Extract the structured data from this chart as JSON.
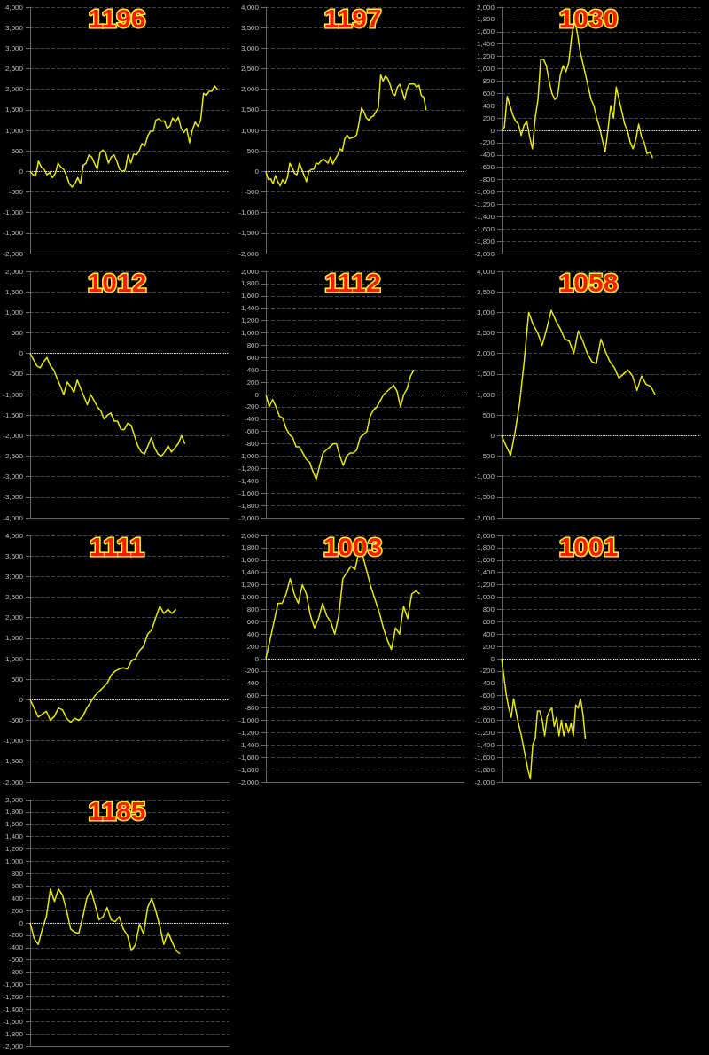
{
  "chart_data": [
    {
      "type": "line",
      "title": "1196",
      "ref_lines": [
        {
          "axis": "y",
          "value": 0,
          "color": "#dddddd",
          "line_style": "dotted"
        }
      ],
      "ylim": [
        -2000,
        4000
      ],
      "yticks": [
        {
          "value": -2000,
          "label": "-2,000"
        },
        {
          "value": -1500,
          "label": "-1,500"
        },
        {
          "value": -1000,
          "label": "-1,000"
        },
        -500,
        0,
        500,
        {
          "value": 1000,
          "label": "1,000"
        },
        {
          "value": 1500,
          "label": "1,500"
        },
        {
          "value": 2000,
          "label": "2,000"
        },
        {
          "value": 2500,
          "label": "2,500"
        },
        {
          "value": 3000,
          "label": "3,000"
        },
        {
          "value": 3500,
          "label": "3,500"
        },
        {
          "value": 4000,
          "label": "4,000"
        }
      ],
      "grid": "y",
      "tick_labels": "y",
      "categories": [
        null,
        null,
        null,
        null,
        null,
        null,
        null,
        null,
        null,
        null,
        null,
        null,
        null,
        null,
        null,
        null,
        null,
        null,
        null,
        null,
        null,
        null,
        null,
        null,
        null,
        null,
        null,
        null,
        null,
        null,
        null,
        null,
        null,
        null,
        null,
        null,
        null,
        null,
        null,
        null,
        null,
        null,
        null,
        null,
        null,
        null,
        null,
        null,
        null,
        null,
        null,
        null,
        null,
        null,
        null,
        null,
        null,
        null,
        null,
        null,
        null,
        null,
        null,
        null,
        null,
        null,
        null,
        null,
        null,
        null,
        null,
        null
      ],
      "series": [
        {
          "color": "#e8e800",
          "values": [
            0,
            -80,
            -100,
            250,
            100,
            50,
            -80,
            -30,
            -150,
            -50,
            200,
            100,
            50,
            -100,
            -300,
            -380,
            -300,
            -150,
            -300,
            150,
            200,
            400,
            350,
            200,
            50,
            450,
            520,
            450,
            200,
            350,
            400,
            250,
            50,
            0,
            30,
            400,
            200,
            420,
            400,
            500,
            680,
            620,
            850,
            980,
            980,
            1250,
            1280,
            1220,
            1230,
            1050,
            1100,
            1300,
            1200,
            1320,
            1050,
            950,
            1050,
            700,
            1000,
            1200,
            1100,
            1250,
            1900,
            1850,
            1950,
            1950,
            2080,
            2000,
            null,
            null,
            null,
            null
          ]
        }
      ]
    },
    {
      "type": "line",
      "title": "1197",
      "ref_lines": [
        {
          "axis": "y",
          "value": 0,
          "color": "#dddddd",
          "line_style": "dotted"
        }
      ],
      "ylim": [
        -2000,
        4000
      ],
      "yticks": [
        {
          "value": -2000,
          "label": "-2,000"
        },
        {
          "value": -1500,
          "label": "-1,500"
        },
        {
          "value": -1000,
          "label": "-1,000"
        },
        -500,
        0,
        500,
        {
          "value": 1000,
          "label": "1,000"
        },
        {
          "value": 1500,
          "label": "1,500"
        },
        {
          "value": 2000,
          "label": "2,000"
        },
        {
          "value": 2500,
          "label": "2,500"
        },
        {
          "value": 3000,
          "label": "3,000"
        },
        {
          "value": 3500,
          "label": "3,500"
        },
        {
          "value": 4000,
          "label": "4,000"
        }
      ],
      "grid": "y",
      "tick_labels": "y",
      "categories": [
        null,
        null,
        null,
        null,
        null,
        null,
        null,
        null,
        null,
        null,
        null,
        null,
        null,
        null,
        null,
        null,
        null,
        null,
        null,
        null,
        null,
        null,
        null,
        null,
        null,
        null,
        null,
        null,
        null,
        null,
        null,
        null,
        null,
        null,
        null,
        null,
        null,
        null,
        null,
        null,
        null,
        null,
        null,
        null,
        null,
        null,
        null,
        null,
        null,
        null,
        null,
        null,
        null,
        null,
        null,
        null,
        null,
        null,
        null,
        null,
        null,
        null,
        null,
        null,
        null,
        null,
        null,
        null,
        null,
        null,
        null,
        null,
        null,
        null,
        null,
        null,
        null,
        null,
        null,
        null,
        null,
        null,
        null,
        null
      ],
      "series": [
        {
          "color": "#e8e800",
          "values": [
            0,
            -200,
            -180,
            -300,
            -100,
            -250,
            -350,
            -200,
            -300,
            -150,
            200,
            100,
            -50,
            -80,
            200,
            50,
            -100,
            -250,
            0,
            50,
            50,
            200,
            180,
            250,
            300,
            250,
            200,
            350,
            180,
            300,
            400,
            550,
            500,
            800,
            880,
            800,
            820,
            830,
            900,
            1200,
            1550,
            1450,
            1300,
            1250,
            1320,
            1350,
            1450,
            1550,
            2350,
            2200,
            2320,
            2250,
            2100,
            1900,
            1850,
            2050,
            2120,
            1950,
            1750,
            2000,
            2130,
            2130,
            2130,
            2050,
            2100,
            1850,
            1800,
            1500,
            null,
            null,
            null,
            null,
            null,
            null,
            null,
            null,
            null,
            null,
            null,
            null,
            null,
            null,
            null,
            null
          ]
        }
      ]
    },
    {
      "type": "line",
      "title": "1030",
      "ref_lines": [
        {
          "axis": "y",
          "value": 0,
          "color": "#dddddd",
          "line_style": "dotted"
        }
      ],
      "ylim": [
        -2000,
        2000
      ],
      "yticks": [
        {
          "value": -2000,
          "label": "-2,000"
        },
        {
          "value": -1800,
          "label": "-1,800"
        },
        {
          "value": -1600,
          "label": "-1,600"
        },
        {
          "value": -1400,
          "label": "-1,400"
        },
        {
          "value": -1200,
          "label": "-1,200"
        },
        {
          "value": -1000,
          "label": "-1,000"
        },
        -800,
        -600,
        -400,
        -200,
        0,
        200,
        400,
        600,
        800,
        {
          "value": 1000,
          "label": "1,000"
        },
        {
          "value": 1200,
          "label": "1,200"
        },
        {
          "value": 1400,
          "label": "1,400"
        },
        {
          "value": 1600,
          "label": "1,600"
        },
        {
          "value": 1800,
          "label": "1,800"
        },
        {
          "value": 2000,
          "label": "2,000"
        }
      ],
      "grid": "y",
      "tick_labels": "y",
      "categories": [
        null,
        null,
        null,
        null,
        null,
        null,
        null,
        null,
        null,
        null,
        null,
        null,
        null,
        null,
        null,
        null,
        null,
        null,
        null,
        null,
        null,
        null,
        null,
        null,
        null,
        null,
        null,
        null,
        null,
        null,
        null,
        null,
        null,
        null,
        null,
        null,
        null,
        null,
        null,
        null,
        null,
        null,
        null,
        null,
        null,
        null,
        null,
        null,
        null,
        null,
        null,
        null,
        null,
        null,
        null,
        null,
        null,
        null,
        null,
        null,
        null,
        null,
        null,
        null,
        null,
        null,
        null,
        null,
        null,
        null,
        null,
        null
      ],
      "series": [
        {
          "color": "#e8e800",
          "values": [
            0,
            50,
            550,
            400,
            250,
            150,
            100,
            -80,
            80,
            150,
            -100,
            -300,
            200,
            500,
            1150,
            1150,
            1050,
            800,
            600,
            500,
            550,
            900,
            1050,
            950,
            1100,
            1500,
            1800,
            1600,
            1300,
            1100,
            900,
            700,
            500,
            400,
            200,
            50,
            -150,
            -350,
            0,
            400,
            200,
            700,
            500,
            300,
            100,
            0,
            -200,
            -300,
            -150,
            100,
            -100,
            -200,
            -380,
            -350,
            -450,
            null,
            null,
            null,
            null,
            null,
            null,
            null,
            null,
            null,
            null,
            null,
            null,
            null,
            null,
            null,
            null,
            null
          ]
        }
      ]
    },
    {
      "type": "line",
      "title": "1012",
      "ref_lines": [
        {
          "axis": "y",
          "value": 0,
          "color": "#dddddd",
          "line_style": "dotted"
        }
      ],
      "ylim": [
        -4000,
        2000
      ],
      "yticks": [
        {
          "value": -4000,
          "label": "-4,000"
        },
        {
          "value": -3500,
          "label": "-3,500"
        },
        {
          "value": -3000,
          "label": "-3,000"
        },
        {
          "value": -2500,
          "label": "-2,500"
        },
        {
          "value": -2000,
          "label": "-2,000"
        },
        {
          "value": -1500,
          "label": "-1,500"
        },
        {
          "value": -1000,
          "label": "-1,000"
        },
        -500,
        0,
        500,
        {
          "value": 1000,
          "label": "1,000"
        },
        {
          "value": 1500,
          "label": "1,500"
        },
        {
          "value": 2000,
          "label": "2,000"
        }
      ],
      "grid": "y",
      "tick_labels": "y",
      "categories": [
        null,
        null,
        null,
        null,
        null,
        null,
        null,
        null,
        null,
        null,
        null,
        null,
        null,
        null,
        null,
        null,
        null,
        null,
        null,
        null,
        null,
        null,
        null,
        null,
        null,
        null,
        null,
        null,
        null,
        null,
        null,
        null,
        null,
        null,
        null,
        null,
        null,
        null,
        null,
        null,
        null,
        null,
        null,
        null,
        null,
        null,
        null,
        null,
        null,
        null,
        null,
        null,
        null,
        null,
        null,
        null,
        null,
        null,
        null,
        null
      ],
      "series": [
        {
          "color": "#e8e800",
          "values": [
            0,
            -150,
            -300,
            -350,
            -200,
            -100,
            -300,
            -400,
            -600,
            -800,
            -1000,
            -700,
            -800,
            -950,
            -650,
            -850,
            -1050,
            -1250,
            -1000,
            -1150,
            -1300,
            -1400,
            -1600,
            -1500,
            -1450,
            -1650,
            -1650,
            -1850,
            -1850,
            -1700,
            -1750,
            -2000,
            -2250,
            -2400,
            -2450,
            -2250,
            -2050,
            -2300,
            -2450,
            -2500,
            -2400,
            -2250,
            -2400,
            -2300,
            -2200,
            -2000,
            -2200,
            null,
            null,
            null,
            null,
            null,
            null,
            null,
            null,
            null,
            null,
            null,
            null,
            null
          ]
        }
      ]
    },
    {
      "type": "line",
      "title": "1112",
      "ref_lines": [
        {
          "axis": "y",
          "value": 0,
          "color": "#dddddd",
          "line_style": "dotted"
        }
      ],
      "ylim": [
        -2000,
        2000
      ],
      "yticks": [
        {
          "value": -2000,
          "label": "-2,000"
        },
        {
          "value": -1800,
          "label": "-1,800"
        },
        {
          "value": -1600,
          "label": "-1,600"
        },
        {
          "value": -1400,
          "label": "-1,400"
        },
        {
          "value": -1200,
          "label": "-1,200"
        },
        {
          "value": -1000,
          "label": "-1,000"
        },
        -800,
        -600,
        -400,
        -200,
        0,
        200,
        400,
        600,
        800,
        {
          "value": 1000,
          "label": "1,000"
        },
        {
          "value": 1200,
          "label": "1,200"
        },
        {
          "value": 1400,
          "label": "1,400"
        },
        {
          "value": 1600,
          "label": "1,600"
        },
        {
          "value": 1800,
          "label": "1,800"
        },
        {
          "value": 2000,
          "label": "2,000"
        }
      ],
      "grid": "y",
      "tick_labels": "y",
      "categories": [
        null,
        null,
        null,
        null,
        null,
        null,
        null,
        null,
        null,
        null,
        null,
        null,
        null,
        null,
        null,
        null,
        null,
        null,
        null,
        null,
        null,
        null,
        null,
        null,
        null,
        null,
        null,
        null,
        null,
        null,
        null,
        null,
        null,
        null,
        null,
        null,
        null,
        null,
        null,
        null,
        null,
        null,
        null,
        null,
        null,
        null,
        null,
        null,
        null,
        null,
        null,
        null,
        null,
        null,
        null,
        null,
        null,
        null,
        null,
        null
      ],
      "series": [
        {
          "color": "#e8e800",
          "values": [
            0,
            -200,
            -80,
            -200,
            -350,
            -380,
            -550,
            -650,
            -700,
            -850,
            -850,
            -950,
            -1050,
            -1100,
            -1250,
            -1380,
            -1150,
            -950,
            -900,
            -850,
            -800,
            -800,
            -1000,
            -1150,
            -1000,
            -950,
            -950,
            -900,
            -700,
            -650,
            -600,
            -350,
            -250,
            -200,
            -100,
            0,
            50,
            100,
            150,
            50,
            -200,
            0,
            100,
            300,
            400,
            null,
            null,
            null,
            null,
            null,
            null,
            null,
            null,
            null,
            null,
            null,
            null,
            null,
            null,
            null
          ]
        }
      ]
    },
    {
      "type": "line",
      "title": "1058",
      "ref_lines": [
        {
          "axis": "y",
          "value": 0,
          "color": "#dddddd",
          "line_style": "dotted"
        }
      ],
      "ylim": [
        -2000,
        4000
      ],
      "yticks": [
        {
          "value": -2000,
          "label": "-2,000"
        },
        {
          "value": -1500,
          "label": "-1,500"
        },
        {
          "value": -1000,
          "label": "-1,000"
        },
        -500,
        0,
        500,
        {
          "value": 1000,
          "label": "1,000"
        },
        {
          "value": 1500,
          "label": "1,500"
        },
        {
          "value": 2000,
          "label": "2,000"
        },
        {
          "value": 2500,
          "label": "2,500"
        },
        {
          "value": 3000,
          "label": "3,000"
        },
        {
          "value": 3500,
          "label": "3,500"
        },
        {
          "value": 4000,
          "label": "4,000"
        }
      ],
      "grid": "y",
      "tick_labels": "y",
      "categories": [
        null,
        null,
        null,
        null,
        null,
        null,
        null,
        null,
        null,
        null,
        null,
        null,
        null,
        null,
        null,
        null,
        null,
        null,
        null,
        null,
        null,
        null,
        null,
        null,
        null,
        null,
        null,
        null,
        null,
        null,
        null,
        null,
        null,
        null,
        null,
        null,
        null,
        null,
        null,
        null,
        null,
        null,
        null,
        null,
        null
      ],
      "series": [
        {
          "color": "#e8e800",
          "values": [
            0,
            -250,
            -480,
            100,
            800,
            1800,
            3000,
            2700,
            2500,
            2200,
            2600,
            3050,
            2800,
            2600,
            2350,
            2300,
            2000,
            2550,
            2300,
            2000,
            1800,
            1750,
            2350,
            2050,
            1800,
            1650,
            1400,
            1500,
            1600,
            1450,
            1100,
            1450,
            1250,
            1200,
            1000,
            null,
            null,
            null,
            null,
            null,
            null,
            null,
            null,
            null,
            null
          ]
        }
      ]
    },
    {
      "type": "line",
      "title": "1111",
      "ref_lines": [
        {
          "axis": "y",
          "value": 0,
          "color": "#dddddd",
          "line_style": "dotted"
        }
      ],
      "ylim": [
        -2000,
        4000
      ],
      "yticks": [
        {
          "value": -2000,
          "label": "-2,000"
        },
        {
          "value": -1500,
          "label": "-1,500"
        },
        {
          "value": -1000,
          "label": "-1,000"
        },
        -500,
        0,
        500,
        {
          "value": 1000,
          "label": "1,000"
        },
        {
          "value": 1500,
          "label": "1,500"
        },
        {
          "value": 2000,
          "label": "2,000"
        },
        {
          "value": 2500,
          "label": "2,500"
        },
        {
          "value": 3000,
          "label": "3,000"
        },
        {
          "value": 3500,
          "label": "3,500"
        },
        {
          "value": 4000,
          "label": "4,000"
        }
      ],
      "grid": "y",
      "tick_labels": "y",
      "categories": [
        null,
        null,
        null,
        null,
        null,
        null,
        null,
        null,
        null,
        null,
        null,
        null,
        null,
        null,
        null,
        null,
        null,
        null,
        null,
        null,
        null,
        null,
        null,
        null,
        null,
        null,
        null,
        null,
        null,
        null,
        null,
        null,
        null,
        null,
        null,
        null,
        null,
        null,
        null,
        null,
        null,
        null,
        null,
        null,
        null,
        null,
        null,
        null,
        null,
        null
      ],
      "series": [
        {
          "color": "#e8e800",
          "values": [
            0,
            -200,
            -420,
            -350,
            -280,
            -500,
            -400,
            -200,
            -250,
            -450,
            -550,
            -450,
            -500,
            -400,
            -200,
            -50,
            100,
            200,
            300,
            400,
            600,
            700,
            750,
            780,
            750,
            950,
            1000,
            1200,
            1300,
            1600,
            1700,
            2000,
            2280,
            2100,
            2200,
            2100,
            2200,
            null,
            null,
            null,
            null,
            null,
            null,
            null,
            null,
            null,
            null,
            null,
            null,
            null
          ]
        }
      ]
    },
    {
      "type": "line",
      "title": "1003",
      "ref_lines": [
        {
          "axis": "y",
          "value": 0,
          "color": "#dddddd",
          "line_style": "dotted"
        }
      ],
      "ylim": [
        -2000,
        2000
      ],
      "yticks": [
        {
          "value": -2000,
          "label": "-2,000"
        },
        {
          "value": -1800,
          "label": "-1,800"
        },
        {
          "value": -1600,
          "label": "-1,600"
        },
        {
          "value": -1400,
          "label": "-1,400"
        },
        {
          "value": -1200,
          "label": "-1,200"
        },
        {
          "value": -1000,
          "label": "-1,000"
        },
        -800,
        -600,
        -400,
        -200,
        0,
        200,
        400,
        600,
        800,
        {
          "value": 1000,
          "label": "1,000"
        },
        {
          "value": 1200,
          "label": "1,200"
        },
        {
          "value": 1400,
          "label": "1,400"
        },
        {
          "value": 1600,
          "label": "1,600"
        },
        {
          "value": 1800,
          "label": "1,800"
        },
        {
          "value": 2000,
          "label": "2,000"
        }
      ],
      "grid": "y",
      "tick_labels": "y",
      "categories": [
        null,
        null,
        null,
        null,
        null,
        null,
        null,
        null,
        null,
        null,
        null,
        null,
        null,
        null,
        null,
        null,
        null,
        null,
        null,
        null,
        null,
        null,
        null,
        null,
        null,
        null,
        null,
        null,
        null,
        null,
        null,
        null,
        null,
        null,
        null,
        null,
        null,
        null,
        null,
        null,
        null,
        null,
        null,
        null,
        null,
        null,
        null,
        null,
        null,
        null
      ],
      "series": [
        {
          "color": "#e8e800",
          "values": [
            0,
            300,
            600,
            900,
            900,
            1050,
            1300,
            1050,
            900,
            1200,
            1050,
            700,
            500,
            650,
            900,
            700,
            600,
            400,
            700,
            1300,
            1400,
            1500,
            1450,
            1750,
            1650,
            1400,
            1150,
            950,
            750,
            500,
            300,
            150,
            500,
            400,
            850,
            650,
            1050,
            1100,
            1050,
            null,
            null,
            null,
            null,
            null,
            null,
            null,
            null,
            null,
            null,
            null
          ]
        }
      ]
    },
    {
      "type": "line",
      "title": "1001",
      "ref_lines": [
        {
          "axis": "y",
          "value": 0,
          "color": "#dddddd",
          "line_style": "dotted"
        }
      ],
      "ylim": [
        -2000,
        2000
      ],
      "yticks": [
        {
          "value": -2000,
          "label": "-2,000"
        },
        {
          "value": -1800,
          "label": "-1,800"
        },
        {
          "value": -1600,
          "label": "-1,600"
        },
        {
          "value": -1400,
          "label": "-1,400"
        },
        {
          "value": -1200,
          "label": "-1,200"
        },
        {
          "value": -1000,
          "label": "-1,000"
        },
        -800,
        -600,
        -400,
        -200,
        0,
        200,
        400,
        600,
        800,
        {
          "value": 1000,
          "label": "1,000"
        },
        {
          "value": 1200,
          "label": "1,200"
        },
        {
          "value": 1400,
          "label": "1,400"
        },
        {
          "value": 1600,
          "label": "1,600"
        },
        {
          "value": 1800,
          "label": "1,800"
        },
        {
          "value": 2000,
          "label": "2,000"
        }
      ],
      "grid": "y",
      "tick_labels": "y",
      "categories": [
        null,
        null,
        null,
        null,
        null,
        null,
        null,
        null,
        null,
        null,
        null,
        null,
        null,
        null,
        null,
        null,
        null,
        null,
        null,
        null,
        null,
        null,
        null,
        null,
        null,
        null,
        null,
        null,
        null,
        null,
        null,
        null,
        null,
        null,
        null,
        null,
        null,
        null,
        null,
        null,
        null,
        null,
        null,
        null,
        null,
        null,
        null,
        null,
        null,
        null,
        null,
        null,
        null,
        null,
        null,
        null,
        null,
        null,
        null,
        null,
        null,
        null,
        null,
        null,
        null,
        null,
        null,
        null,
        null,
        null,
        null,
        null,
        null,
        null,
        null,
        null,
        null,
        null,
        null,
        null,
        null,
        null,
        null,
        null
      ],
      "series": [
        {
          "color": "#e8e800",
          "values": [
            0,
            -300,
            -600,
            -800,
            -950,
            -650,
            -850,
            -1050,
            -1200,
            -1400,
            -1600,
            -1800,
            -1950,
            -1400,
            -1300,
            -850,
            -850,
            -1000,
            -1250,
            -950,
            -850,
            -800,
            -1100,
            -950,
            -1250,
            -1000,
            -1250,
            -1050,
            -1200,
            -1050,
            -1250,
            -750,
            -800,
            -650,
            -900,
            -1300,
            null,
            null,
            null,
            null,
            null,
            null,
            null,
            null,
            null,
            null,
            null,
            null,
            null,
            null,
            null,
            null,
            null,
            null,
            null,
            null,
            null,
            null,
            null,
            null,
            null,
            null,
            null,
            null,
            null,
            null,
            null,
            null,
            null,
            null,
            null,
            null,
            null,
            null,
            null,
            null,
            null,
            null,
            null,
            null,
            null,
            null,
            null,
            null
          ]
        }
      ]
    },
    {
      "type": "line",
      "title": "1185",
      "ref_lines": [
        {
          "axis": "y",
          "value": 0,
          "color": "#dddddd",
          "line_style": "dotted"
        }
      ],
      "ylim": [
        -2000,
        2000
      ],
      "yticks": [
        {
          "value": -2000,
          "label": "-2,000"
        },
        {
          "value": -1800,
          "label": "-1,800"
        },
        {
          "value": -1600,
          "label": "-1,600"
        },
        {
          "value": -1400,
          "label": "-1,400"
        },
        {
          "value": -1200,
          "label": "-1,200"
        },
        {
          "value": -1000,
          "label": "-1,000"
        },
        -800,
        -600,
        -400,
        -200,
        0,
        200,
        400,
        600,
        800,
        {
          "value": 1000,
          "label": "1,000"
        },
        {
          "value": 1200,
          "label": "1,200"
        },
        {
          "value": 1400,
          "label": "1,400"
        },
        {
          "value": 1600,
          "label": "1,600"
        },
        {
          "value": 1800,
          "label": "1,800"
        },
        {
          "value": 2000,
          "label": "2,000"
        }
      ],
      "grid": "y",
      "tick_labels": "y",
      "categories": [
        null,
        null,
        null,
        null,
        null,
        null,
        null,
        null,
        null,
        null,
        null,
        null,
        null,
        null,
        null,
        null,
        null,
        null,
        null,
        null,
        null,
        null,
        null,
        null,
        null,
        null,
        null,
        null,
        null,
        null,
        null,
        null,
        null,
        null,
        null,
        null,
        null,
        null,
        null,
        null,
        null,
        null,
        null,
        null,
        null,
        null,
        null,
        null,
        null,
        null
      ],
      "series": [
        {
          "color": "#e8e800",
          "values": [
            0,
            -250,
            -350,
            -100,
            100,
            550,
            350,
            550,
            450,
            200,
            -100,
            -150,
            -170,
            100,
            400,
            530,
            300,
            50,
            100,
            250,
            50,
            20,
            100,
            -100,
            -200,
            -450,
            -350,
            -20,
            -180,
            250,
            400,
            200,
            -50,
            -350,
            -150,
            -300,
            -450,
            -500,
            null,
            null,
            null,
            null,
            null,
            null,
            null,
            null,
            null,
            null,
            null,
            null
          ]
        }
      ]
    }
  ]
}
